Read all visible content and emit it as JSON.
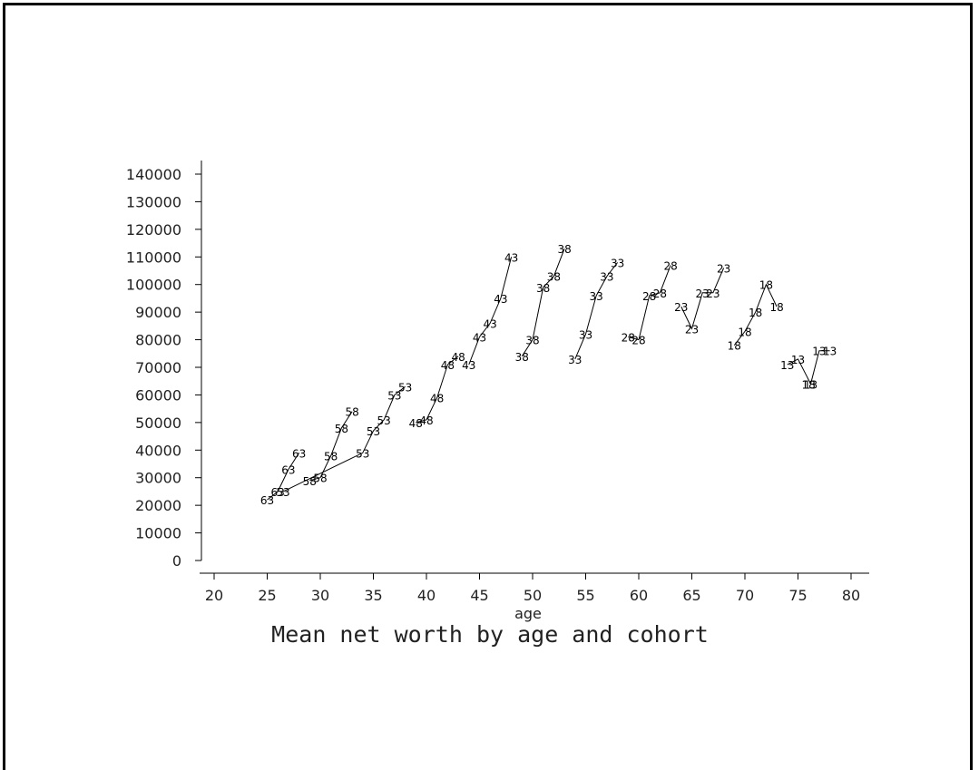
{
  "chart_data": {
    "type": "line",
    "title": "Mean net worth by age and cohort",
    "xlabel": "age",
    "ylabel": "",
    "xlim": [
      20,
      80
    ],
    "ylim": [
      0,
      140000
    ],
    "xticks": [
      20,
      25,
      30,
      35,
      40,
      45,
      50,
      55,
      60,
      65,
      70,
      75,
      80
    ],
    "yticks": [
      0,
      10000,
      20000,
      30000,
      40000,
      50000,
      60000,
      70000,
      80000,
      90000,
      100000,
      110000,
      120000,
      130000,
      140000
    ],
    "grid": false,
    "legend": "none",
    "series": [
      {
        "name": "63",
        "points": [
          [
            25,
            22000
          ],
          [
            26,
            25000
          ],
          [
            27,
            33000
          ],
          [
            28,
            39000
          ]
        ]
      },
      {
        "name": "58",
        "points": [
          [
            29,
            29000
          ],
          [
            30,
            30000
          ],
          [
            31,
            38000
          ],
          [
            32,
            48000
          ],
          [
            33,
            54000
          ]
        ]
      },
      {
        "name": "53",
        "points": [
          [
            26.5,
            25000
          ],
          [
            34,
            39000
          ],
          [
            35,
            47000
          ],
          [
            36,
            51000
          ],
          [
            37,
            60000
          ],
          [
            38,
            63000
          ]
        ]
      },
      {
        "name": "48",
        "points": [
          [
            39,
            50000
          ],
          [
            40,
            51000
          ],
          [
            41,
            59000
          ],
          [
            42,
            71000
          ],
          [
            43,
            74000
          ]
        ]
      },
      {
        "name": "43",
        "points": [
          [
            44,
            71000
          ],
          [
            45,
            81000
          ],
          [
            46,
            86000
          ],
          [
            47,
            95000
          ],
          [
            48,
            110000
          ]
        ]
      },
      {
        "name": "38",
        "points": [
          [
            49,
            74000
          ],
          [
            50,
            80000
          ],
          [
            51,
            99000
          ],
          [
            52,
            103000
          ],
          [
            53,
            113000
          ]
        ]
      },
      {
        "name": "33",
        "points": [
          [
            54,
            73000
          ],
          [
            55,
            82000
          ],
          [
            56,
            96000
          ],
          [
            57,
            103000
          ],
          [
            58,
            108000
          ]
        ]
      },
      {
        "name": "28",
        "points": [
          [
            59,
            81000
          ],
          [
            60,
            80000
          ],
          [
            61,
            96000
          ],
          [
            62,
            97000
          ],
          [
            63,
            107000
          ]
        ]
      },
      {
        "name": "23",
        "points": [
          [
            64,
            92000
          ],
          [
            65,
            84000
          ],
          [
            66,
            97000
          ],
          [
            67,
            97000
          ],
          [
            68,
            106000
          ]
        ]
      },
      {
        "name": "18",
        "points": [
          [
            69,
            78000
          ],
          [
            70,
            83000
          ],
          [
            71,
            90000
          ],
          [
            72,
            100000
          ],
          [
            73,
            92000
          ]
        ]
      },
      {
        "name": "18",
        "points": [
          [
            76,
            64000
          ]
        ]
      },
      {
        "name": "13",
        "points": [
          [
            74,
            71000
          ],
          [
            75,
            73000
          ],
          [
            76.2,
            64000
          ],
          [
            77,
            76000
          ],
          [
            78,
            76000
          ]
        ]
      }
    ]
  }
}
